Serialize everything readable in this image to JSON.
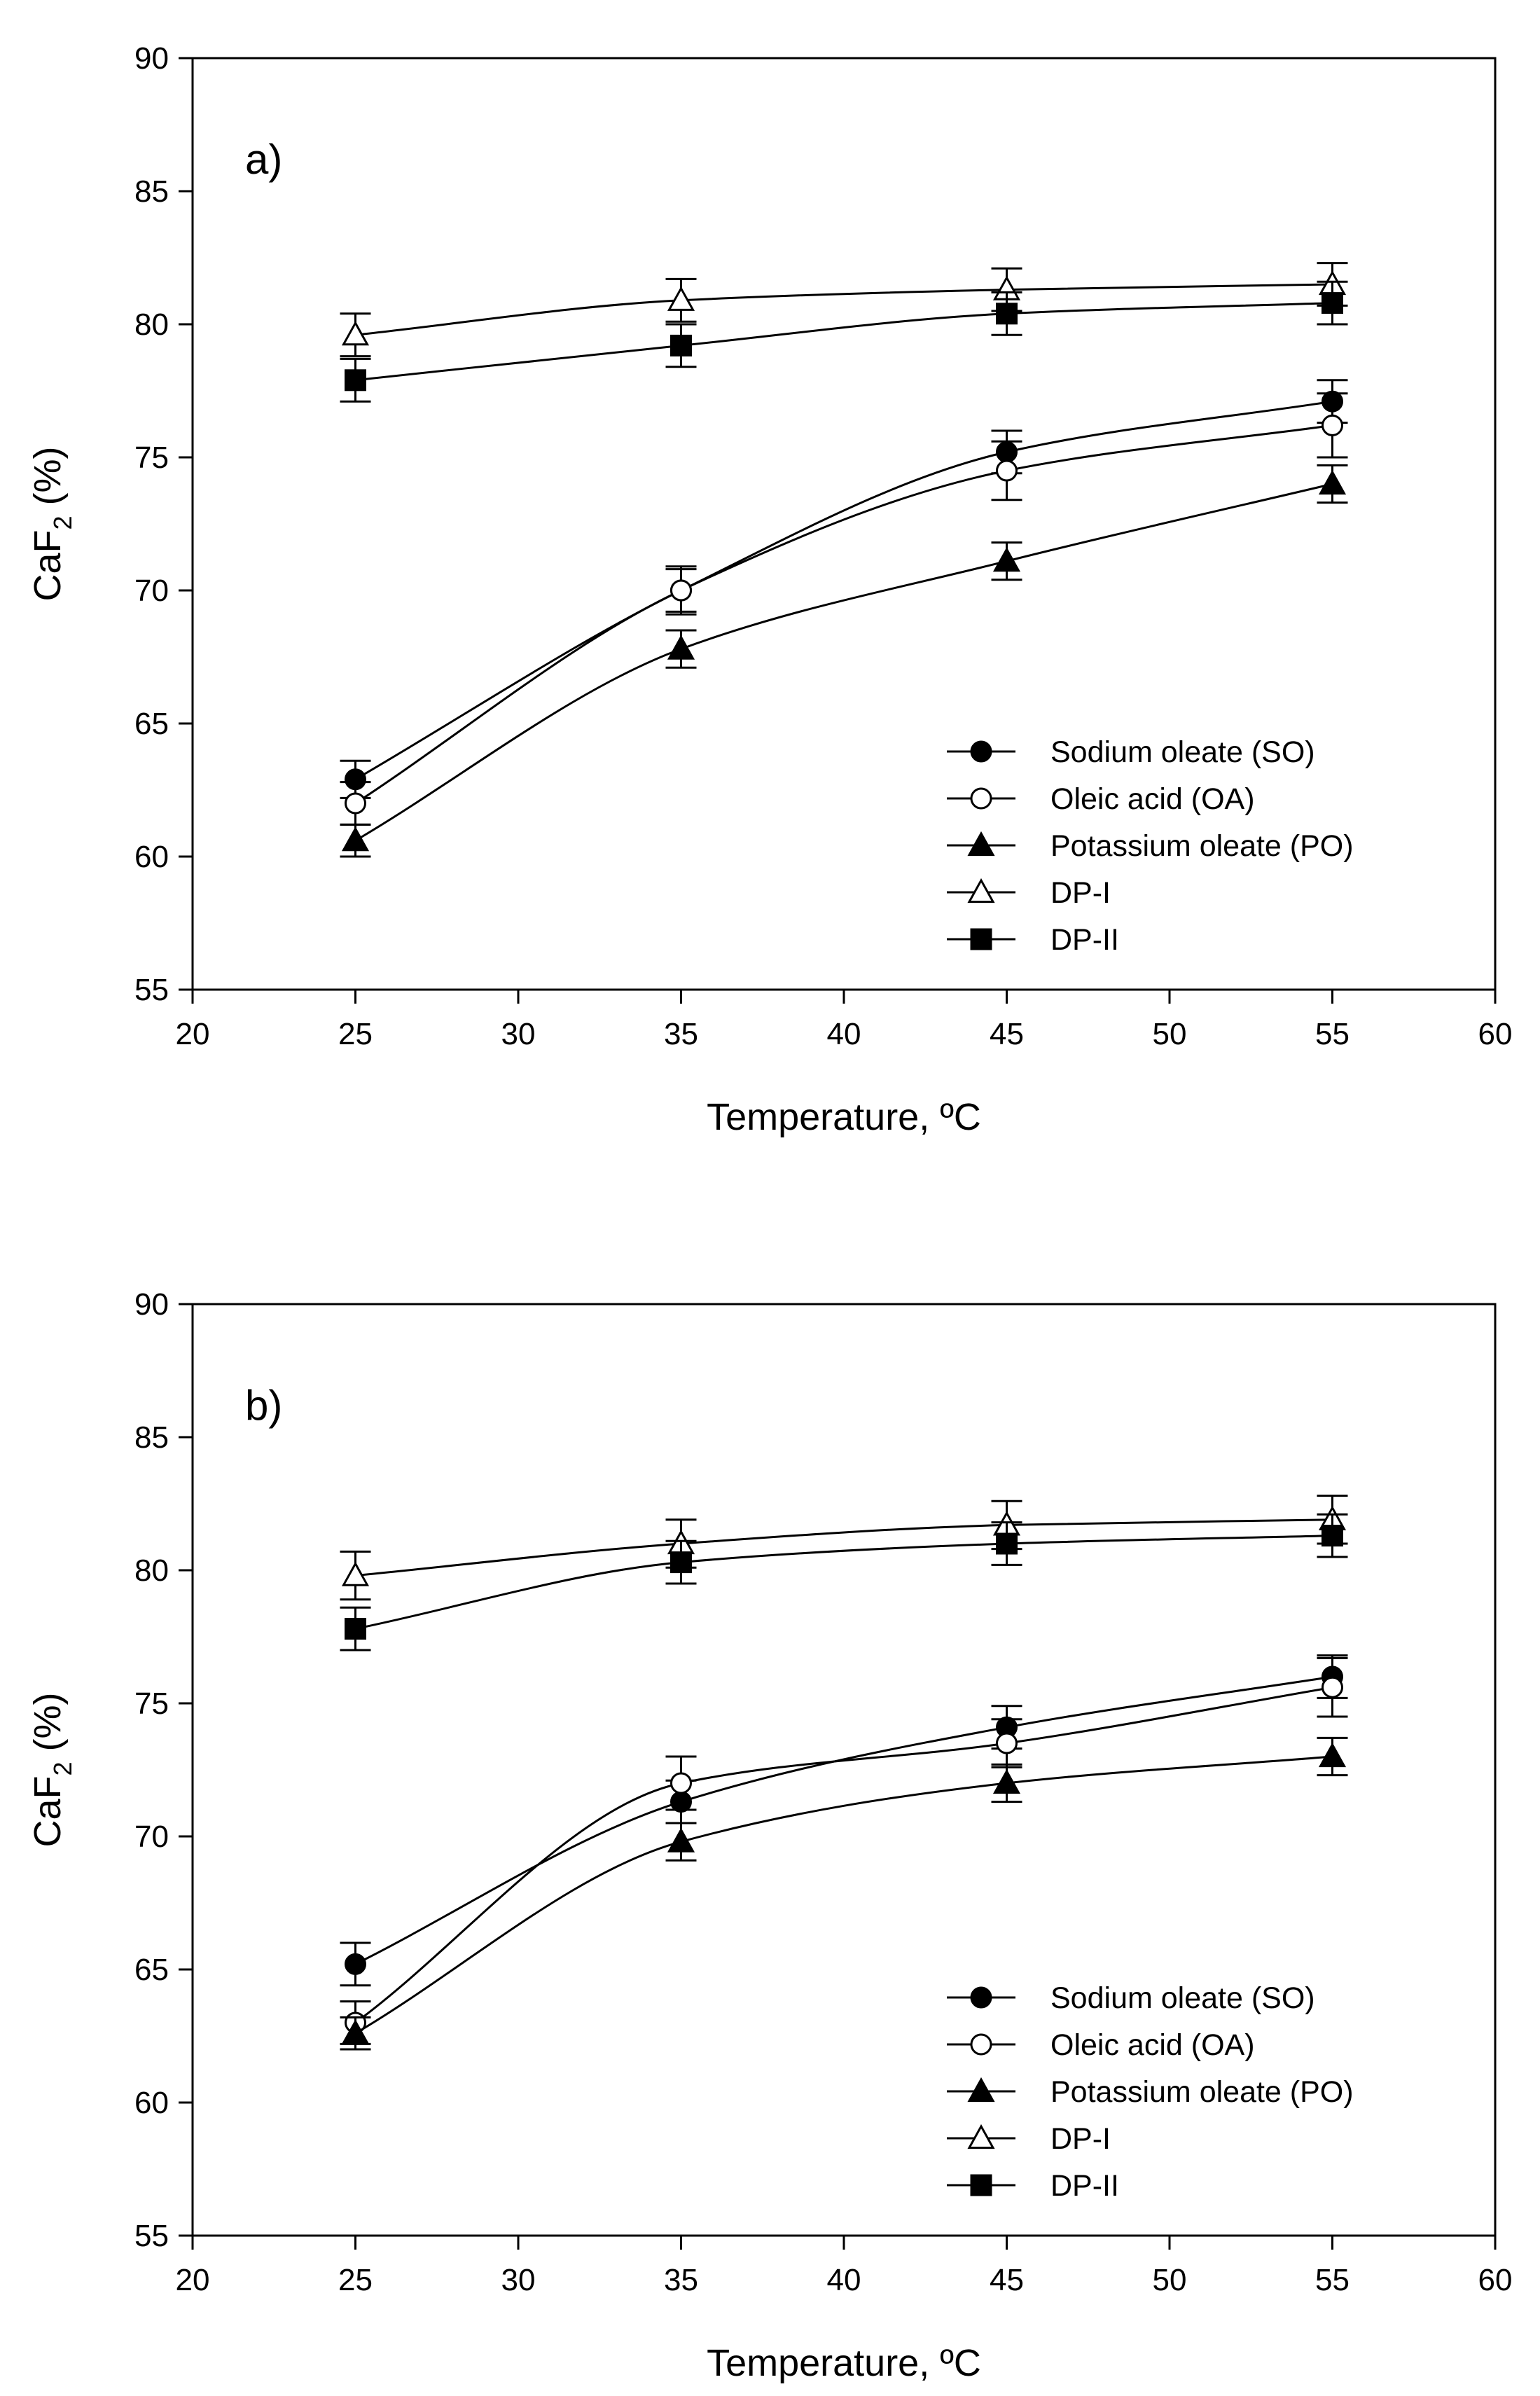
{
  "chart_data": [
    {
      "type": "line",
      "panel_label": "a)",
      "xlabel": "Temperature, ºC",
      "ylabel_main": "CaF",
      "ylabel_sub": "2",
      "ylabel_tail": " (%)",
      "xlim": [
        20,
        60
      ],
      "ylim": [
        55,
        90
      ],
      "xticks": [
        20,
        25,
        30,
        35,
        40,
        45,
        50,
        55,
        60
      ],
      "yticks": [
        55,
        60,
        65,
        70,
        75,
        80,
        85,
        90
      ],
      "grid": false,
      "legend_position": "center-right",
      "x": [
        25,
        35,
        45,
        55
      ],
      "series": [
        {
          "name": "Sodium oleate (SO)",
          "marker": "filled-circle",
          "values": [
            62.9,
            70.0,
            75.2,
            77.1
          ],
          "err": [
            0.7,
            0.8,
            0.8,
            0.8
          ]
        },
        {
          "name": "Oleic acid (OA)",
          "marker": "open-circle",
          "values": [
            62.0,
            70.0,
            74.5,
            76.2
          ],
          "err": [
            0.8,
            0.9,
            1.1,
            1.2
          ]
        },
        {
          "name": "Potassium oleate (PO)",
          "marker": "filled-triangle",
          "values": [
            60.6,
            67.8,
            71.1,
            74.0
          ],
          "err": [
            0.6,
            0.7,
            0.7,
            0.7
          ]
        },
        {
          "name": "DP-I",
          "marker": "open-triangle",
          "values": [
            79.6,
            80.9,
            81.3,
            81.5
          ],
          "err": [
            0.8,
            0.8,
            0.8,
            0.8
          ]
        },
        {
          "name": "DP-II",
          "marker": "filled-square",
          "values": [
            77.9,
            79.2,
            80.4,
            80.8
          ],
          "err": [
            0.8,
            0.8,
            0.8,
            0.8
          ]
        }
      ]
    },
    {
      "type": "line",
      "panel_label": "b)",
      "xlabel": "Temperature, ºC",
      "ylabel_main": "CaF",
      "ylabel_sub": "2",
      "ylabel_tail": " (%)",
      "xlim": [
        20,
        60
      ],
      "ylim": [
        55,
        90
      ],
      "xticks": [
        20,
        25,
        30,
        35,
        40,
        45,
        50,
        55,
        60
      ],
      "yticks": [
        55,
        60,
        65,
        70,
        75,
        80,
        85,
        90
      ],
      "grid": false,
      "legend_position": "center-right",
      "x": [
        25,
        35,
        45,
        55
      ],
      "series": [
        {
          "name": "Sodium oleate (SO)",
          "marker": "filled-circle",
          "values": [
            65.2,
            71.3,
            74.1,
            76.0
          ],
          "err": [
            0.8,
            0.8,
            0.8,
            0.8
          ]
        },
        {
          "name": "Oleic acid (OA)",
          "marker": "open-circle",
          "values": [
            63.0,
            72.0,
            73.5,
            75.6
          ],
          "err": [
            0.8,
            1.0,
            0.9,
            1.1
          ]
        },
        {
          "name": "Potassium oleate (PO)",
          "marker": "filled-triangle",
          "values": [
            62.6,
            69.8,
            72.0,
            73.0
          ],
          "err": [
            0.6,
            0.7,
            0.7,
            0.7
          ]
        },
        {
          "name": "DP-I",
          "marker": "open-triangle",
          "values": [
            79.8,
            81.0,
            81.7,
            81.9
          ],
          "err": [
            0.9,
            0.9,
            0.9,
            0.9
          ]
        },
        {
          "name": "DP-II",
          "marker": "filled-square",
          "values": [
            77.8,
            80.3,
            81.0,
            81.3
          ],
          "err": [
            0.8,
            0.8,
            0.8,
            0.8
          ]
        }
      ]
    }
  ]
}
